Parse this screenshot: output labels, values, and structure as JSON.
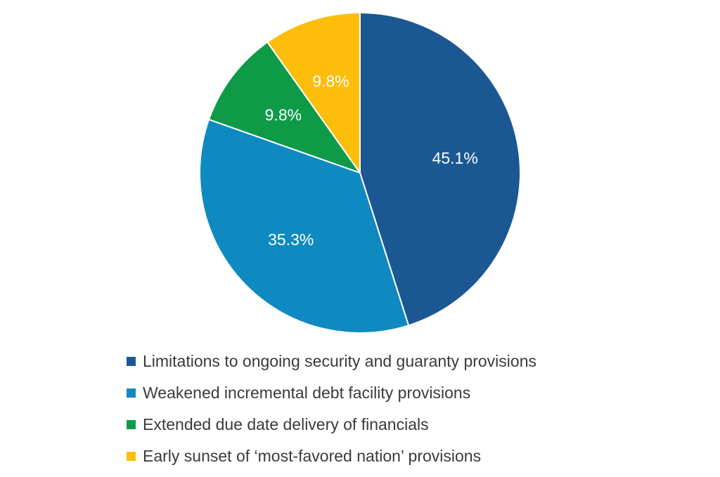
{
  "chart_data": {
    "type": "pie",
    "slices": [
      {
        "name": "Limitations to ongoing security and guaranty provisions",
        "value": 45.1,
        "label": "45.1%",
        "color": "#1b5893"
      },
      {
        "name": "Weakened incremental debt facility provisions",
        "value": 35.3,
        "label": "35.3%",
        "color": "#0f8ac0"
      },
      {
        "name": "Extended due date delivery of financials",
        "value": 9.8,
        "label": "9.8%",
        "color": "#0f9a48"
      },
      {
        "name": "Early sunset of ‘most-favored nation’ provisions",
        "value": 9.8,
        "label": "9.8%",
        "color": "#fcbd0b"
      }
    ],
    "legend_position": "bottom"
  }
}
